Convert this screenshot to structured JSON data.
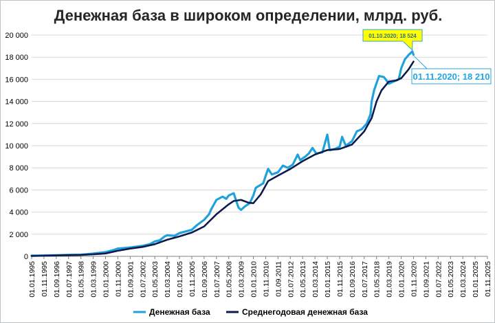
{
  "chart_data": {
    "type": "line",
    "title": "Денежная база в широком определении, млрд. руб.",
    "ylim": [
      0,
      20000
    ],
    "y_ticks": [
      "0",
      "2 000",
      "4 000",
      "6 000",
      "8 000",
      "10 000",
      "12 000",
      "14 000",
      "16 000",
      "18 000",
      "20 000"
    ],
    "x_ticks": [
      "01.01.1995",
      "01.11.1995",
      "01.09.1996",
      "01.07.1997",
      "01.05.1998",
      "01.03.1999",
      "01.01.2000",
      "01.11.2000",
      "01.09.2001",
      "01.07.2002",
      "01.05.2003",
      "01.03.2004",
      "01.01.2005",
      "01.11.2005",
      "01.09.2006",
      "01.07.2007",
      "01.05.2008",
      "01.03.2009",
      "01.01.2010",
      "01.11.2010",
      "01.09.2011",
      "01.07.2012",
      "01.05.2013",
      "01.03.2014",
      "01.01.2015",
      "01.11.2015",
      "01.09.2016",
      "01.07.2017",
      "01.05.2018",
      "01.03.2019",
      "01.01.2020",
      "01.11.2020",
      "01.09.2021",
      "01.07.2022",
      "01.05.2023",
      "01.03.2024",
      "01.01.2025",
      "01.11.2025"
    ],
    "grid": true,
    "legend_position": "bottom",
    "series": [
      {
        "name": "Денежная база",
        "color": "#1fa2dc",
        "points": [
          [
            "1995-01-01",
            60
          ],
          [
            "1995-11-01",
            80
          ],
          [
            "1996-09-01",
            100
          ],
          [
            "1997-07-01",
            130
          ],
          [
            "1998-05-01",
            150
          ],
          [
            "1999-03-01",
            250
          ],
          [
            "2000-01-01",
            380
          ],
          [
            "2000-07-01",
            550
          ],
          [
            "2000-11-01",
            700
          ],
          [
            "2001-09-01",
            800
          ],
          [
            "2002-07-01",
            950
          ],
          [
            "2003-01-01",
            1100
          ],
          [
            "2003-05-01",
            1350
          ],
          [
            "2003-09-01",
            1450
          ],
          [
            "2004-01-01",
            1800
          ],
          [
            "2004-03-01",
            1900
          ],
          [
            "2004-09-01",
            1850
          ],
          [
            "2005-01-01",
            2100
          ],
          [
            "2005-06-01",
            2250
          ],
          [
            "2005-11-01",
            2400
          ],
          [
            "2006-03-01",
            2800
          ],
          [
            "2006-09-01",
            3300
          ],
          [
            "2007-01-01",
            3800
          ],
          [
            "2007-03-01",
            4300
          ],
          [
            "2007-07-01",
            5100
          ],
          [
            "2007-12-01",
            5400
          ],
          [
            "2008-03-01",
            5200
          ],
          [
            "2008-05-01",
            5500
          ],
          [
            "2008-09-01",
            5700
          ],
          [
            "2009-01-01",
            4400
          ],
          [
            "2009-03-01",
            4200
          ],
          [
            "2009-06-01",
            4500
          ],
          [
            "2009-10-01",
            4800
          ],
          [
            "2010-01-01",
            5500
          ],
          [
            "2010-03-01",
            6200
          ],
          [
            "2010-09-01",
            6600
          ],
          [
            "2010-11-01",
            7300
          ],
          [
            "2011-01-01",
            7900
          ],
          [
            "2011-04-01",
            7400
          ],
          [
            "2011-09-01",
            7600
          ],
          [
            "2012-01-01",
            8200
          ],
          [
            "2012-05-01",
            8000
          ],
          [
            "2012-09-01",
            8300
          ],
          [
            "2013-01-01",
            9200
          ],
          [
            "2013-03-01",
            8700
          ],
          [
            "2013-07-01",
            9000
          ],
          [
            "2013-10-01",
            9300
          ],
          [
            "2014-01-01",
            9800
          ],
          [
            "2014-04-01",
            9300
          ],
          [
            "2014-09-01",
            9400
          ],
          [
            "2015-01-01",
            11000
          ],
          [
            "2015-03-01",
            9600
          ],
          [
            "2015-07-01",
            9700
          ],
          [
            "2015-11-01",
            9900
          ],
          [
            "2016-01-01",
            10800
          ],
          [
            "2016-04-01",
            10000
          ],
          [
            "2016-09-01",
            10400
          ],
          [
            "2017-01-01",
            11300
          ],
          [
            "2017-05-01",
            11500
          ],
          [
            "2017-09-01",
            12000
          ],
          [
            "2017-12-01",
            12800
          ],
          [
            "2018-01-01",
            14000
          ],
          [
            "2018-03-01",
            15000
          ],
          [
            "2018-07-01",
            16300
          ],
          [
            "2018-11-01",
            16200
          ],
          [
            "2019-01-01",
            15900
          ],
          [
            "2019-03-01",
            15600
          ],
          [
            "2019-07-01",
            15800
          ],
          [
            "2019-11-01",
            16000
          ],
          [
            "2020-01-01",
            17000
          ],
          [
            "2020-04-01",
            17800
          ],
          [
            "2020-07-01",
            18200
          ],
          [
            "2020-10-01",
            18524
          ],
          [
            "2020-11-01",
            18210
          ]
        ]
      },
      {
        "name": "Среднегодовая денежная база",
        "color": "#0d1a4d",
        "points": [
          [
            "1995-01-01",
            40
          ],
          [
            "1996-09-01",
            80
          ],
          [
            "1998-05-01",
            130
          ],
          [
            "1999-03-01",
            180
          ],
          [
            "2000-01-01",
            260
          ],
          [
            "2000-11-01",
            500
          ],
          [
            "2001-09-01",
            700
          ],
          [
            "2002-07-01",
            850
          ],
          [
            "2003-05-01",
            1100
          ],
          [
            "2004-03-01",
            1500
          ],
          [
            "2005-01-01",
            1800
          ],
          [
            "2005-11-01",
            2150
          ],
          [
            "2006-09-01",
            2700
          ],
          [
            "2007-07-01",
            3800
          ],
          [
            "2008-05-01",
            4700
          ],
          [
            "2008-09-01",
            5000
          ],
          [
            "2009-03-01",
            5100
          ],
          [
            "2009-09-01",
            4850
          ],
          [
            "2010-01-01",
            4800
          ],
          [
            "2010-07-01",
            5600
          ],
          [
            "2011-01-01",
            6800
          ],
          [
            "2011-09-01",
            7300
          ],
          [
            "2012-07-01",
            7900
          ],
          [
            "2013-05-01",
            8600
          ],
          [
            "2014-03-01",
            9200
          ],
          [
            "2015-01-01",
            9600
          ],
          [
            "2015-11-01",
            9700
          ],
          [
            "2016-09-01",
            10100
          ],
          [
            "2017-07-01",
            11300
          ],
          [
            "2018-01-01",
            12500
          ],
          [
            "2018-05-01",
            14000
          ],
          [
            "2018-09-01",
            15000
          ],
          [
            "2019-03-01",
            15800
          ],
          [
            "2019-09-01",
            15900
          ],
          [
            "2020-01-01",
            16100
          ],
          [
            "2020-07-01",
            16900
          ],
          [
            "2020-11-01",
            17600
          ]
        ]
      }
    ],
    "annotations": [
      {
        "text": "01.10.2020;  18 524",
        "x": "2020-10-01",
        "y": 18524,
        "style": "callout"
      },
      {
        "text": "01.11.2020;  18 210",
        "x": "2020-11-01",
        "y": 18210,
        "style": "callout"
      }
    ],
    "colors": {
      "callout_yellow_fill": "#ffff00",
      "callout_border": "#2ea4d8",
      "annotation_text": "#1fa8e0",
      "grid": "#d9d9d9"
    }
  }
}
